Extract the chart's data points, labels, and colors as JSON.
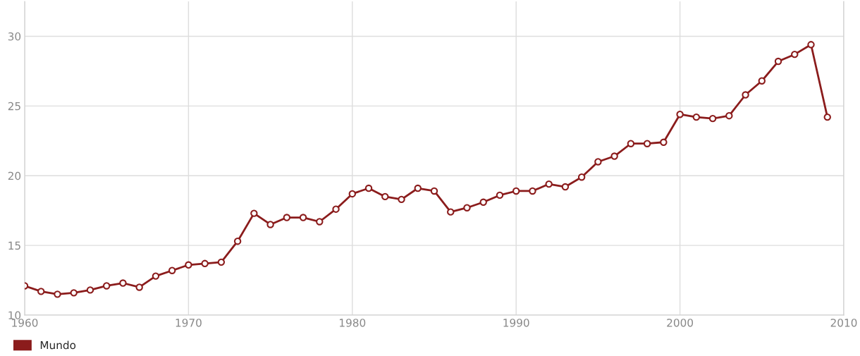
{
  "chart_data": {
    "type": "line",
    "x": [
      1960,
      1961,
      1962,
      1963,
      1964,
      1965,
      1966,
      1967,
      1968,
      1969,
      1970,
      1971,
      1972,
      1973,
      1974,
      1975,
      1976,
      1977,
      1978,
      1979,
      1980,
      1981,
      1982,
      1983,
      1984,
      1985,
      1986,
      1987,
      1988,
      1989,
      1990,
      1991,
      1992,
      1993,
      1994,
      1995,
      1996,
      1997,
      1998,
      1999,
      2000,
      2001,
      2002,
      2003,
      2004,
      2005,
      2006,
      2007,
      2008,
      2009
    ],
    "series": [
      {
        "name": "Mundo",
        "color": "#8b1c1c",
        "values": [
          12.1,
          11.7,
          11.5,
          11.6,
          11.8,
          12.1,
          12.3,
          12.0,
          12.8,
          13.2,
          13.6,
          13.7,
          13.8,
          15.3,
          17.3,
          16.5,
          17.0,
          17.0,
          16.7,
          17.6,
          18.7,
          19.1,
          18.5,
          18.3,
          19.1,
          18.9,
          17.4,
          17.7,
          18.1,
          18.6,
          18.9,
          18.9,
          19.4,
          19.2,
          19.9,
          21.0,
          21.4,
          22.3,
          22.3,
          22.4,
          24.4,
          24.2,
          24.1,
          24.3,
          25.8,
          26.8,
          28.2,
          28.7,
          29.4,
          24.2
        ]
      }
    ],
    "xlim": [
      1960,
      2010
    ],
    "xticks": [
      1960,
      1970,
      1980,
      1990,
      2000,
      2010
    ],
    "ylim": [
      10,
      32.5
    ],
    "yticks": [
      10,
      15,
      20,
      25,
      30
    ],
    "grid": true,
    "legend": "bottom left",
    "marker": "circle",
    "line_style": "solid"
  }
}
